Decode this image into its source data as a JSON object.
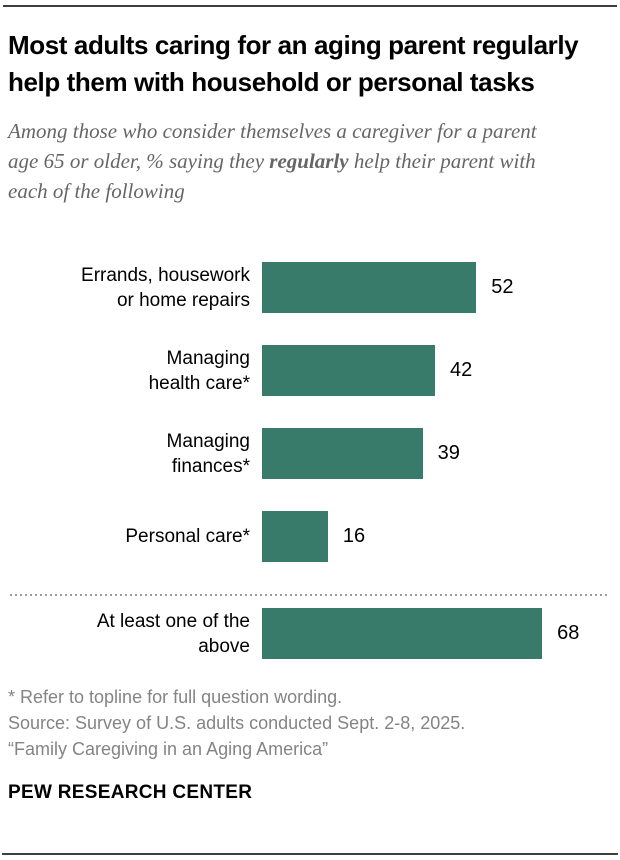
{
  "title": "Most adults caring for an aging parent regularly help them with household or personal tasks",
  "subtitle": {
    "part1": "Among those who consider themselves a caregiver for a parent age 65 or older, % saying they ",
    "bold": "regularly",
    "part2": " help their parent with each of the following"
  },
  "chart_data": {
    "type": "bar",
    "orientation": "horizontal",
    "title": "Most adults caring for an aging parent regularly help them with household or personal tasks",
    "categories": [
      "Errands, housework or home repairs",
      "Managing health care*",
      "Managing finances*",
      "Personal care*",
      "At least one of the above"
    ],
    "labels_wrapped": [
      [
        "Errands, housework",
        "or home repairs"
      ],
      [
        "Managing",
        "health care*"
      ],
      [
        "Managing",
        "finances*"
      ],
      [
        "Personal care*"
      ],
      [
        "At least one of the",
        "above"
      ]
    ],
    "values": [
      52,
      42,
      39,
      16,
      68
    ],
    "value_unit": "%",
    "xlim": [
      0,
      100
    ],
    "grid": false,
    "legend": false,
    "bar_color": "#397b6a",
    "divider_after_index": 3,
    "value_label_position": "right-of-bar"
  },
  "footer": {
    "footnote": "* Refer to topline for full question wording.",
    "source": "Source: Survey of U.S. adults conducted Sept. 2-8, 2025.",
    "report": "“Family Caregiving in an Aging America”",
    "brand": "PEW RESEARCH CENTER"
  }
}
